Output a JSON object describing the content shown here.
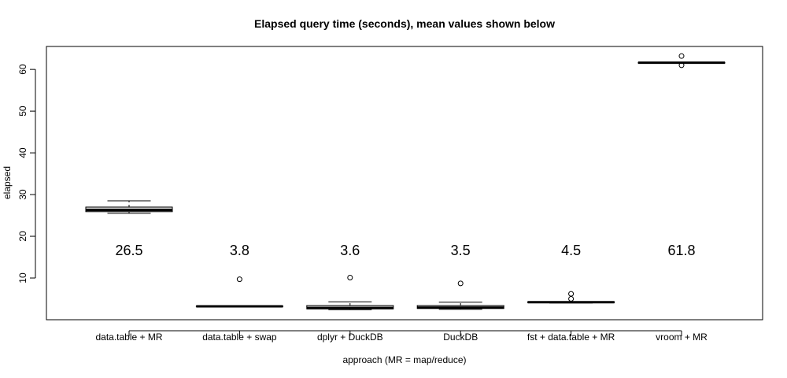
{
  "chart_data": {
    "type": "boxplot",
    "title": "Elapsed query time (seconds), mean values shown below",
    "xlabel": "approach (MR = map/reduce)",
    "ylabel": "elapsed",
    "ylim": [
      0,
      65.5
    ],
    "yticks": [
      10,
      20,
      30,
      40,
      50,
      60
    ],
    "grid": false,
    "legend": "none",
    "colors": {
      "box_fill": "#d3d3d3",
      "stroke": "#000000"
    },
    "categories": [
      "data.table + MR",
      "data.table + swap",
      "dplyr + DuckDB",
      "DuckDB",
      "fst + data.table + MR",
      "vroom + MR"
    ],
    "boxes": [
      {
        "whisker_low": 25.5,
        "q1": 25.9,
        "median": 26.3,
        "q3": 27.0,
        "whisker_high": 28.5,
        "outliers": []
      },
      {
        "whisker_low": 3.1,
        "q1": 3.1,
        "median": 3.2,
        "q3": 3.3,
        "whisker_high": 3.3,
        "outliers": [
          9.7
        ]
      },
      {
        "whisker_low": 2.4,
        "q1": 2.6,
        "median": 2.8,
        "q3": 3.4,
        "whisker_high": 4.3,
        "outliers": [
          10.1
        ]
      },
      {
        "whisker_low": 2.5,
        "q1": 2.7,
        "median": 2.9,
        "q3": 3.4,
        "whisker_high": 4.2,
        "outliers": [
          8.7
        ]
      },
      {
        "whisker_low": 4.0,
        "q1": 4.1,
        "median": 4.2,
        "q3": 4.3,
        "whisker_high": 4.3,
        "outliers": [
          6.2,
          5.0
        ]
      },
      {
        "whisker_low": 61.5,
        "q1": 61.5,
        "median": 61.6,
        "q3": 61.7,
        "whisker_high": 61.7,
        "outliers": [
          63.2,
          61.0
        ]
      }
    ],
    "mean_labels": [
      "26.5",
      "3.8",
      "3.6",
      "3.5",
      "4.5",
      "61.8"
    ],
    "mean_label_y": 16.6
  }
}
